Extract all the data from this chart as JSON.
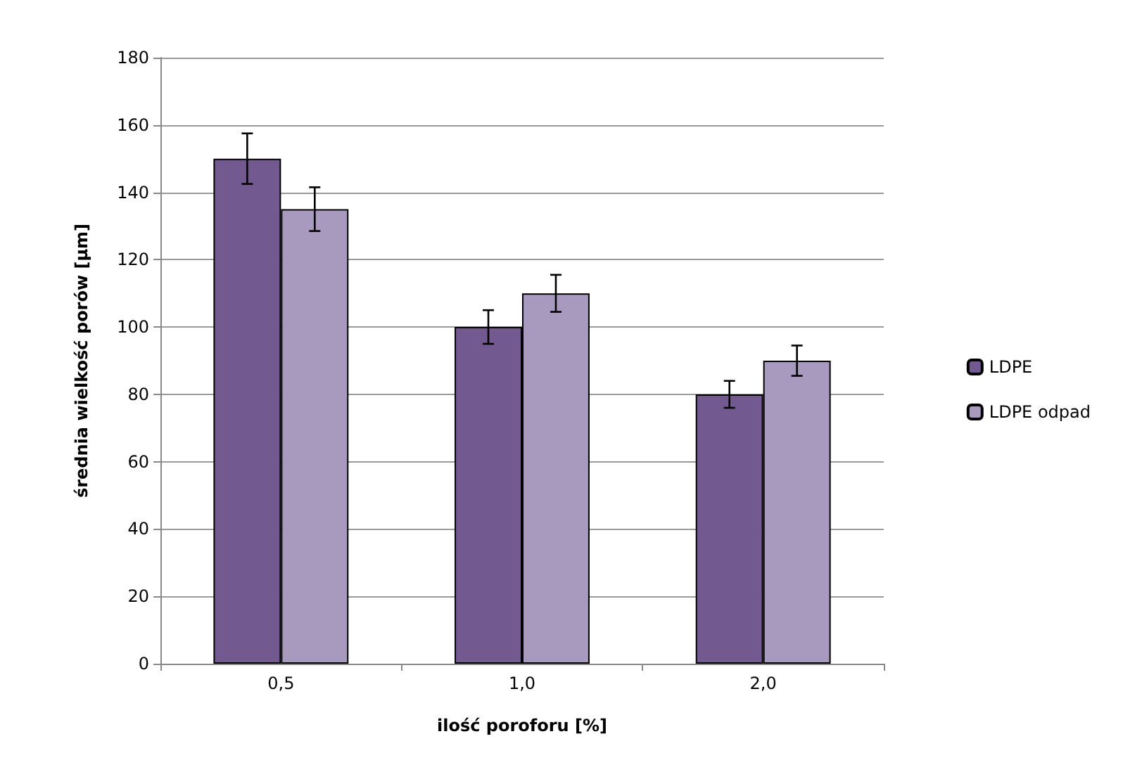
{
  "chart_data": {
    "type": "bar",
    "xlabel": "ilość poroforu [%]",
    "ylabel": "średnia wielkość porów [µm]",
    "categories": [
      "0,5",
      "1,0",
      "2,0"
    ],
    "series": [
      {
        "name": "LDPE",
        "color": "#725a91",
        "values": [
          150,
          100,
          80
        ],
        "errors": [
          7.5,
          5,
          4
        ]
      },
      {
        "name": "LDPE odpad",
        "color": "#a899bf",
        "values": [
          135,
          110,
          90
        ],
        "errors": [
          6.5,
          5.5,
          4.5
        ]
      }
    ],
    "ylim": [
      0,
      180
    ],
    "yticks": [
      0,
      20,
      40,
      60,
      80,
      100,
      120,
      140,
      160,
      180
    ],
    "grid": "y",
    "legend": "right"
  }
}
